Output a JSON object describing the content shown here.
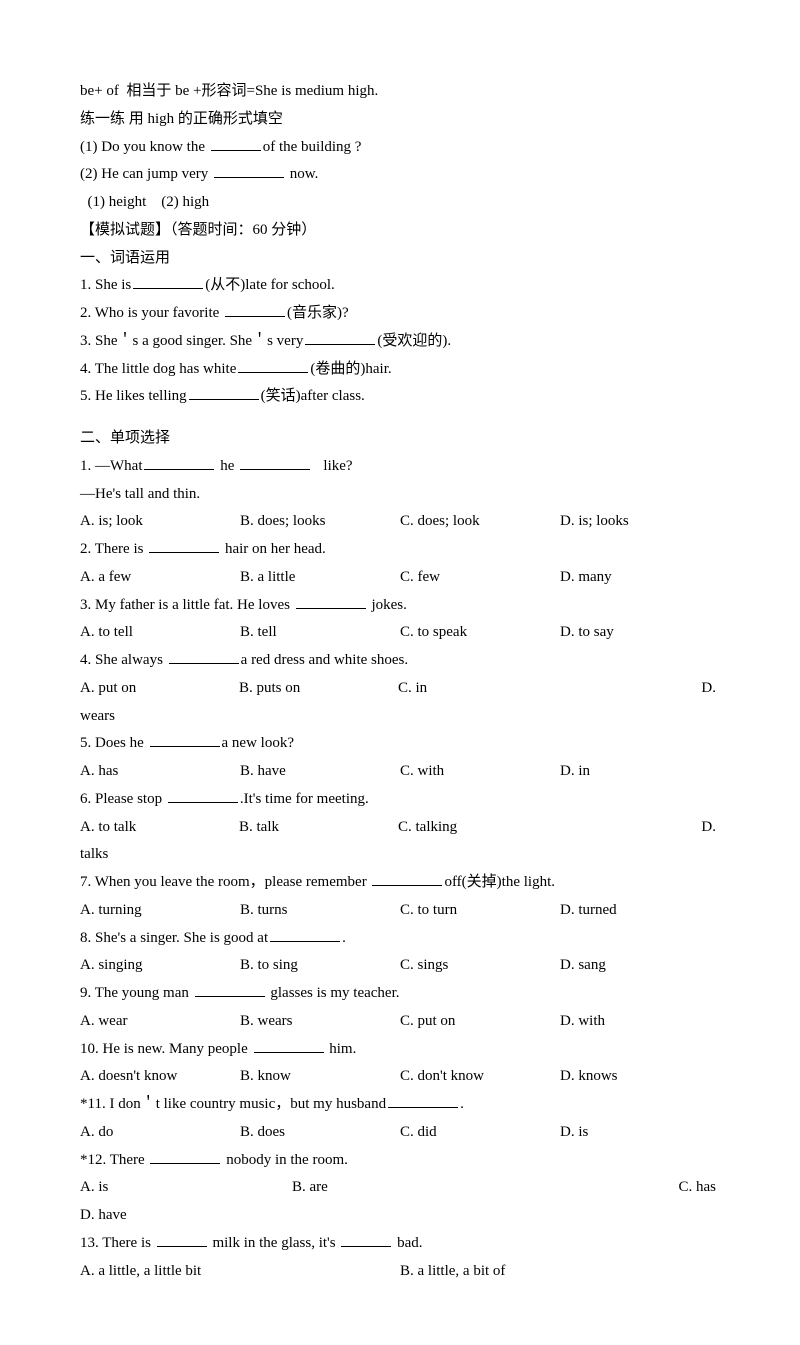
{
  "intro": {
    "line1": "be+ of  相当于 be +形容词=She is medium high.",
    "line2": "练一练 用 high 的正确形式填空",
    "q1_a": "(1) Do you know the ",
    "q1_b": "of the building ?",
    "q2_a": "(2) He can jump very ",
    "q2_b": " now.",
    "ans": "  (1) height    (2) high",
    "mockTitle": "【模拟试题】（答题时间：60 分钟）"
  },
  "sec1": {
    "title": "一、词语运用",
    "q1_a": "1. She is",
    "q1_b": "(从不)late for school.",
    "q2_a": "2. Who is your favorite ",
    "q2_b": "(音乐家)?",
    "q3_a": "3. She＇s a good singer. She＇s very",
    "q3_b": "(受欢迎的).",
    "q4_a": "4. The little dog has white",
    "q4_b": "(卷曲的)hair.",
    "q5_a": "5. He likes telling",
    "q5_b": "(笑话)after class."
  },
  "sec2": {
    "title": "二、单项选择",
    "q1_a": "1. —What",
    "q1_b": " he ",
    "q1_c": "   like?",
    "q1_line2": "—He's tall and thin.",
    "q1_opts": [
      "A. is; look",
      "B. does; looks",
      "C. does; look",
      "D. is; looks"
    ],
    "q2_a": "2. There is ",
    "q2_b": " hair on her head.",
    "q2_opts": [
      "A. a few",
      "B. a little",
      "C. few",
      "D. many"
    ],
    "q3_a": "3. My father is a little fat. He loves ",
    "q3_b": " jokes.",
    "q3_opts": [
      "A. to tell",
      "B. tell",
      "C. to speak",
      "D. to say"
    ],
    "q4_a": "4. She always ",
    "q4_b": "a red dress and white shoes.",
    "q4_opts": [
      "A. put on",
      "B. puts on",
      "C. in",
      "D."
    ],
    "q4_wrap": "wears",
    "q5_a": "5. Does he ",
    "q5_b": "a new look?",
    "q5_opts": [
      "A. has",
      "B. have",
      "C. with",
      "D. in"
    ],
    "q6_a": "6. Please stop ",
    "q6_b": ".It's time for meeting.",
    "q6_opts": [
      "A. to talk",
      "B. talk",
      "C. talking",
      "D."
    ],
    "q6_wrap": "talks",
    "q7_a": "7. When you leave the room，please remember ",
    "q7_b": "off(关掉)the light.",
    "q7_opts": [
      "A. turning",
      "B. turns",
      "C. to turn",
      "D. turned"
    ],
    "q8_a": "8. She's a singer. She is good at",
    "q8_b": ".",
    "q8_opts": [
      "A. singing",
      "B. to sing",
      "C. sings",
      "D. sang"
    ],
    "q9_a": "9. The young man ",
    "q9_b": " glasses is my teacher.",
    "q9_opts": [
      "A. wear",
      "B. wears",
      "C. put on",
      "D. with"
    ],
    "q10_a": "10. He is new. Many people ",
    "q10_b": " him.",
    "q10_opts": [
      "A. doesn't know",
      "B. know",
      "C. don't know",
      "D. knows"
    ],
    "q11_a": "*11. I don＇t like country music，but my husband",
    "q11_b": ".",
    "q11_opts": [
      "A. do",
      "B. does",
      "C. did",
      "D. is"
    ],
    "q12_a": "*12. There ",
    "q12_b": " nobody in the room.",
    "q12_opts": [
      "A.  is",
      "B.  are",
      "C.  has"
    ],
    "q12_wrap": "D. have",
    "q13_a": "13. There is ",
    "q13_b": " milk in the glass, it's ",
    "q13_c": " bad.",
    "q13_opts": [
      "A. a little, a little bit",
      "B. a little, a bit of"
    ]
  }
}
